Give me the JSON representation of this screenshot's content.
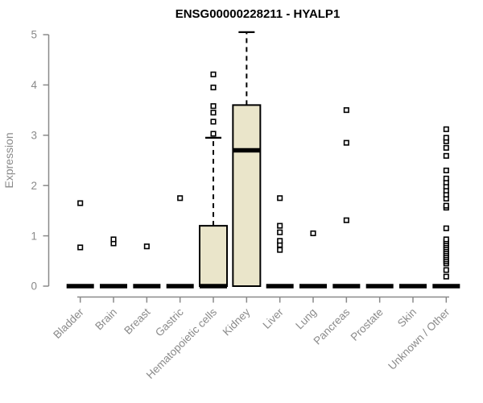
{
  "chart_data": {
    "type": "boxplot",
    "title": "ENSG00000228211 - HYALP1",
    "xlabel": "",
    "ylabel": "Expression",
    "ylim": [
      0,
      5.2
    ],
    "yticks": [
      0,
      1,
      2,
      3,
      4,
      5
    ],
    "grid": false,
    "legend": "none",
    "x_tick_rotation_deg": 45,
    "categories": [
      "Bladder",
      "Brain",
      "Breast",
      "Gastric",
      "Hematopoietic cells",
      "Kidney",
      "Liver",
      "Lung",
      "Pancreas",
      "Prostate",
      "Skin",
      "Unknown / Other"
    ],
    "series": [
      {
        "name": "Bladder",
        "whisker_low": 0,
        "q1": 0,
        "median": 0,
        "q3": 0,
        "whisker_high": 0,
        "outliers": [
          0.77,
          1.65
        ]
      },
      {
        "name": "Brain",
        "whisker_low": 0,
        "q1": 0,
        "median": 0,
        "q3": 0,
        "whisker_high": 0,
        "outliers": [
          0.85,
          0.93
        ]
      },
      {
        "name": "Breast",
        "whisker_low": 0,
        "q1": 0,
        "median": 0,
        "q3": 0,
        "whisker_high": 0,
        "outliers": [
          0.79
        ]
      },
      {
        "name": "Gastric",
        "whisker_low": 0,
        "q1": 0,
        "median": 0,
        "q3": 0,
        "whisker_high": 0,
        "outliers": [
          1.75
        ]
      },
      {
        "name": "Hematopoietic cells",
        "whisker_low": 0,
        "q1": 0,
        "median": 0,
        "q3": 1.2,
        "whisker_high": 2.95,
        "outliers": [
          3.03,
          3.27,
          3.45,
          3.58,
          3.95,
          4.21
        ]
      },
      {
        "name": "Kidney",
        "whisker_low": 0,
        "q1": 0,
        "median": 2.7,
        "q3": 3.6,
        "whisker_high": 5.05,
        "outliers": []
      },
      {
        "name": "Liver",
        "whisker_low": 0,
        "q1": 0,
        "median": 0,
        "q3": 0,
        "whisker_high": 0,
        "outliers": [
          0.72,
          0.82,
          0.9,
          1.07,
          1.2,
          1.75
        ]
      },
      {
        "name": "Lung",
        "whisker_low": 0,
        "q1": 0,
        "median": 0,
        "q3": 0,
        "whisker_high": 0,
        "outliers": [
          1.05
        ]
      },
      {
        "name": "Pancreas",
        "whisker_low": 0,
        "q1": 0,
        "median": 0,
        "q3": 0,
        "whisker_high": 0,
        "outliers": [
          1.31,
          2.85,
          3.5
        ]
      },
      {
        "name": "Prostate",
        "whisker_low": 0,
        "q1": 0,
        "median": 0,
        "q3": 0,
        "whisker_high": 0,
        "outliers": []
      },
      {
        "name": "Skin",
        "whisker_low": 0,
        "q1": 0,
        "median": 0,
        "q3": 0,
        "whisker_high": 0,
        "outliers": []
      },
      {
        "name": "Unknown / Other",
        "whisker_low": 0,
        "q1": 0,
        "median": 0,
        "q3": 0,
        "whisker_high": 0,
        "outliers": [
          0.19,
          0.32,
          0.45,
          0.49,
          0.53,
          0.57,
          0.61,
          0.65,
          0.69,
          0.73,
          0.77,
          0.81,
          0.85,
          0.89,
          0.93,
          1.15,
          1.56,
          1.6,
          1.74,
          1.82,
          1.9,
          1.98,
          2.06,
          2.14,
          2.3,
          2.59,
          2.75,
          2.88,
          2.95,
          3.12
        ]
      }
    ],
    "colors": {
      "box_fill": "#EAE5CA",
      "box_stroke": "#000000",
      "median": "#000000",
      "whisker": "#000000",
      "outlier_stroke": "#000000",
      "outlier_fill": "#ffffff",
      "axis": "#8a8a8a",
      "tick_text": "#8a8a8a",
      "title": "#000000",
      "background": "#ffffff"
    }
  }
}
